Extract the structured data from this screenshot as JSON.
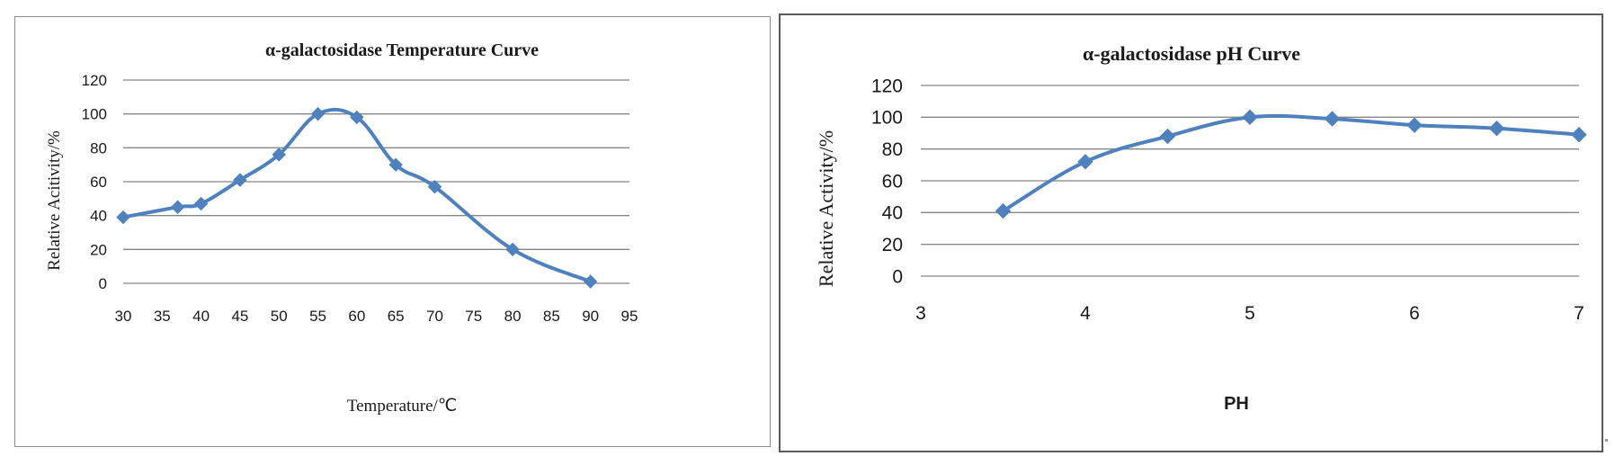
{
  "colors": {
    "series": "#4f81bd",
    "grid": "#868686",
    "text": "#1a1a1a"
  },
  "chart_data": [
    {
      "type": "line",
      "title": "α-galactosidase Temperature Curve",
      "xlabel": "Temperature/℃",
      "ylabel": "Relative Acitivity/%",
      "xlim": [
        30,
        95
      ],
      "ylim": [
        0,
        120
      ],
      "x_ticks": [
        "30",
        "35",
        "40",
        "45",
        "50",
        "55",
        "60",
        "65",
        "70",
        "75",
        "80",
        "85",
        "90",
        "95"
      ],
      "y_ticks": [
        "0",
        "20",
        "40",
        "60",
        "80",
        "100",
        "120"
      ],
      "grid": true,
      "smooth": true,
      "marker": "diamond",
      "series": [
        {
          "x": [
            30,
            37,
            40,
            45,
            50,
            55,
            60,
            65,
            70,
            80,
            90
          ],
          "y": [
            39,
            45,
            47,
            61,
            76,
            100,
            98,
            70,
            57,
            20,
            1
          ]
        }
      ]
    },
    {
      "type": "line",
      "title": "α-galactosidase pH Curve",
      "xlabel": "PH",
      "ylabel": "Relative Activity/%",
      "xlim": [
        3,
        7
      ],
      "ylim": [
        0,
        120
      ],
      "x_ticks": [
        "3",
        "4",
        "5",
        "6",
        "7"
      ],
      "y_ticks": [
        "0",
        "20",
        "40",
        "60",
        "80",
        "100",
        "120"
      ],
      "grid": true,
      "smooth": true,
      "marker": "diamond",
      "series": [
        {
          "x": [
            3.5,
            4,
            4.5,
            5,
            5.5,
            6,
            6.5,
            7
          ],
          "y": [
            41,
            72,
            88,
            100,
            99,
            95,
            93,
            89
          ]
        }
      ]
    }
  ]
}
